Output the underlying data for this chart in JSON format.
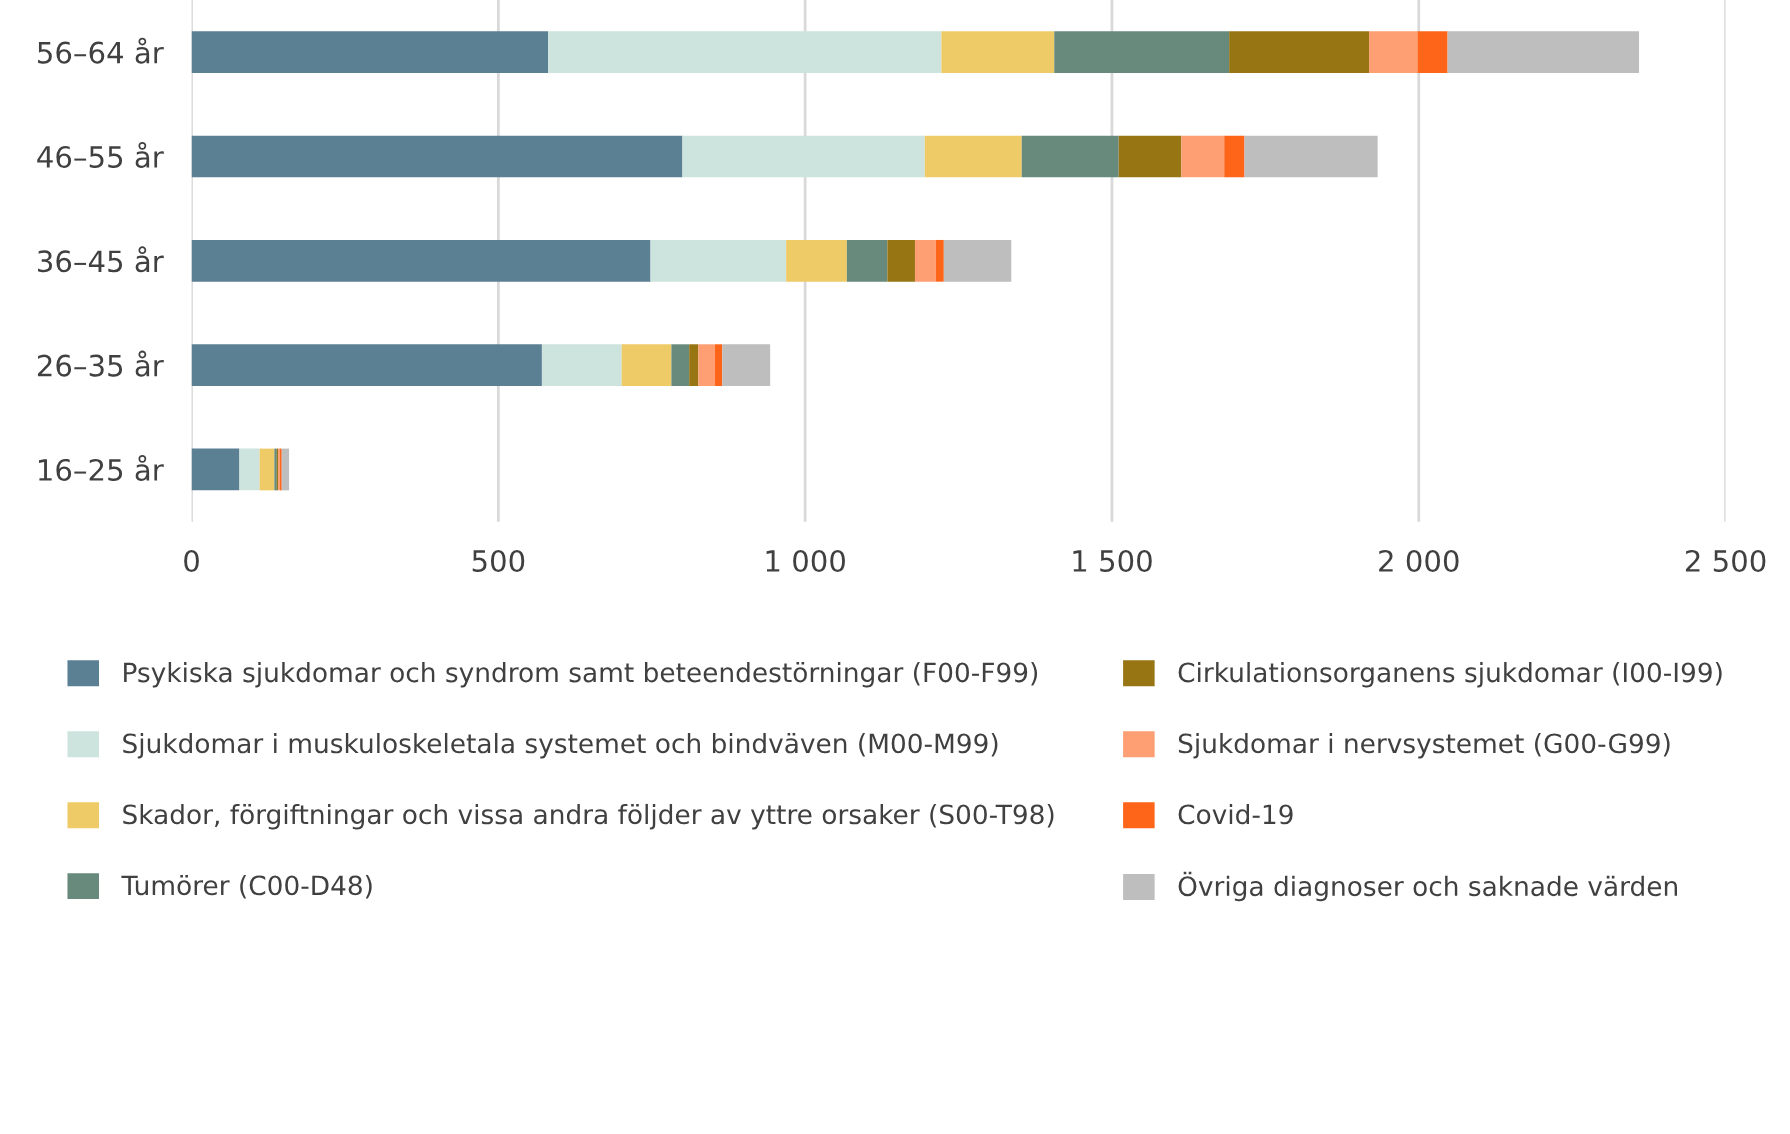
{
  "chart_data": {
    "type": "bar",
    "orientation": "horizontal",
    "stacked": true,
    "grid": "x",
    "legend": "bottom",
    "categories": [
      "56–64 år",
      "46–55 år",
      "36–45 år",
      "26–35 år",
      "16–25 år"
    ],
    "series": [
      {
        "name": "Psykiska sjukdomar och syndrom samt beteendestörningar (F00-F99)",
        "color": "#5b7f93",
        "values": [
          581,
          800,
          748,
          571,
          78
        ]
      },
      {
        "name": "Sjukdomar i muskuloskeletala systemet och bindväven (M00-M99)",
        "color": "#cde3dd",
        "values": [
          641,
          395,
          221,
          130,
          33
        ]
      },
      {
        "name": "Skador, förgiftningar och vissa andra följder av yttre orsaker (S00-T98)",
        "color": "#eecb67",
        "values": [
          184,
          158,
          99,
          81,
          24
        ]
      },
      {
        "name": "Tumörer (C00-D48)",
        "color": "#688a7c",
        "values": [
          285,
          158,
          66,
          29,
          4
        ]
      },
      {
        "name": "Cirkulationsorganens sjukdomar (I00-I99)",
        "color": "#977512",
        "values": [
          228,
          102,
          45,
          15,
          2
        ]
      },
      {
        "name": "Sjukdomar i nervsystemet (G00-G99)",
        "color": "#fd9f73",
        "values": [
          79,
          70,
          34,
          27,
          3
        ]
      },
      {
        "name": "Covid-19",
        "color": "#fe6519",
        "values": [
          49,
          33,
          13,
          12,
          3
        ]
      },
      {
        "name": "Övriga diagnoser och saknade värden",
        "color": "#bebebe",
        "values": [
          312,
          217,
          110,
          78,
          12
        ]
      }
    ],
    "xlim": [
      0,
      2500
    ],
    "xticks": [
      0,
      500,
      {
        "value": 1000,
        "label": "1 000"
      },
      {
        "value": 1500,
        "label": "1 500"
      },
      {
        "value": 2000,
        "label": "2 000"
      },
      {
        "value": 2500,
        "label": "2 500"
      }
    ]
  }
}
